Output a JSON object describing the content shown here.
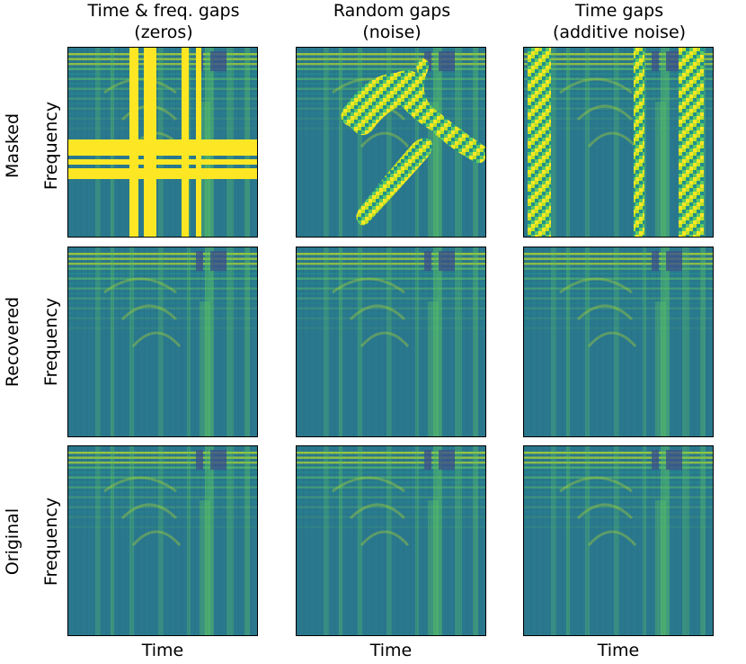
{
  "columns": [
    {
      "title": "Time & freq. gaps\n(zeros)",
      "x_label": "Time"
    },
    {
      "title": "Random gaps\n(noise)",
      "x_label": "Time"
    },
    {
      "title": "Time gaps\n(additive noise)",
      "x_label": "Time"
    }
  ],
  "rows": [
    {
      "label": "Masked",
      "y_label": "Frequency"
    },
    {
      "label": "Recovered",
      "y_label": "Frequency"
    },
    {
      "label": "Original",
      "y_label": "Frequency"
    }
  ],
  "colors": {
    "base": "#2a788e",
    "dark": "#3b528b",
    "mid": "#21918c",
    "light": "#5ec962",
    "bright": "#bddf26",
    "mask": "#fde725"
  }
}
